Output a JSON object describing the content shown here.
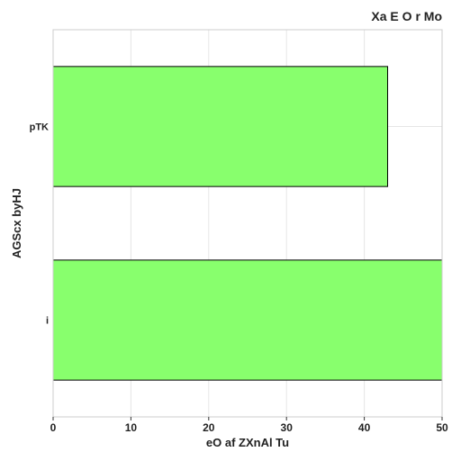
{
  "chart_data": {
    "type": "bar",
    "orientation": "horizontal",
    "title": "Xa E O  r Mo",
    "xlabel": "eO af ZXnAl Tu",
    "ylabel": "AGScx  byHJ",
    "categories": [
      "pTK",
      "i"
    ],
    "series": [
      {
        "values": [
          43,
          50
        ],
        "color": "#88ff6d"
      }
    ],
    "xlim": [
      0,
      50
    ],
    "xticks": [
      0,
      10,
      20,
      30,
      40,
      50
    ],
    "grid": true,
    "legend": "none"
  }
}
